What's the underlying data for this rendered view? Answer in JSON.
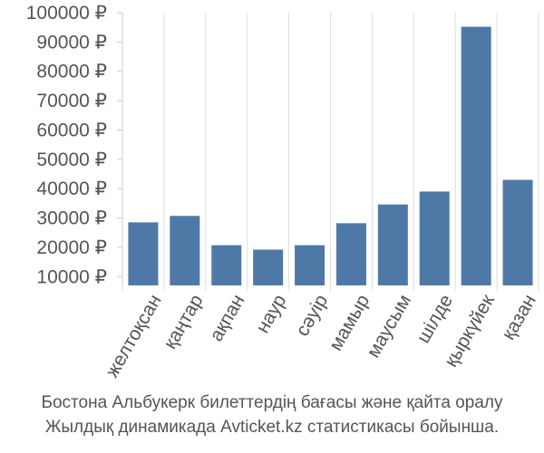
{
  "chart_data": {
    "type": "bar",
    "categories": [
      "желтоқсан",
      "қаңтар",
      "ақпан",
      "наур",
      "сәуір",
      "мамыр",
      "маусым",
      "шілде",
      "қыркүйек",
      "қазан"
    ],
    "values": [
      28500,
      30700,
      20700,
      19200,
      20700,
      28200,
      34600,
      39000,
      95200,
      43000
    ],
    "y_tick_labels": [
      "10000 ₽",
      "20000 ₽",
      "30000 ₽",
      "40000 ₽",
      "50000 ₽",
      "60000 ₽",
      "70000 ₽",
      "80000 ₽",
      "90000 ₽",
      "100000 ₽"
    ],
    "y_ticks": [
      10000,
      20000,
      30000,
      40000,
      50000,
      60000,
      70000,
      80000,
      90000,
      100000
    ],
    "ylim": [
      7000,
      100000
    ],
    "grid": "vertical",
    "bar_color": "#4e79a7",
    "title": "",
    "xlabel": "",
    "ylabel": ""
  },
  "caption": {
    "line1": "Бостона Альбукерк билеттердің бағасы және қайта оралу",
    "line2": "Жылдық динамикада Avticket.kz статистикасы бойынша."
  }
}
